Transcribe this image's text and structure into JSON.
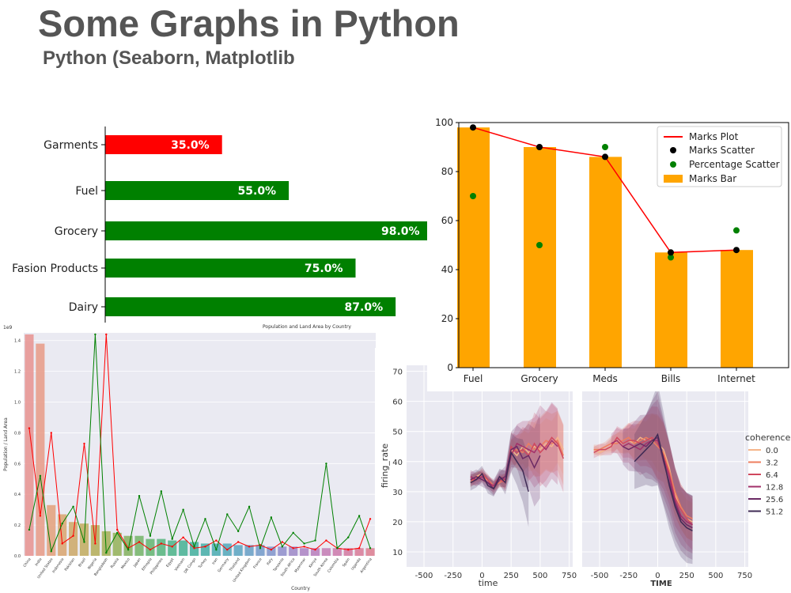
{
  "slide": {
    "title": "Some Graphs in Python",
    "subtitle": "Python (Seaborn, Matplotlib"
  },
  "colors": {
    "red": "#ff0000",
    "green": "#008000",
    "orange": "#ffa500",
    "black": "#000000",
    "seaborn_bg": "#eaeaf2"
  },
  "chart_data": [
    {
      "id": "hbar",
      "type": "bar",
      "orientation": "horizontal",
      "categories": [
        "Garments",
        "Fuel",
        "Grocery",
        "Fasion Products",
        "Dairy"
      ],
      "values": [
        35.0,
        55.0,
        98.0,
        75.0,
        87.0
      ],
      "labels": [
        "35.0%",
        "55.0%",
        "98.0%",
        "75.0%",
        "87.0%"
      ],
      "colors": [
        "#ff0000",
        "#008000",
        "#008000",
        "#008000",
        "#008000"
      ],
      "xlim": [
        0,
        100
      ]
    },
    {
      "id": "combo",
      "type": "bar",
      "categories": [
        "Fuel",
        "Grocery",
        "Meds",
        "Bills",
        "Internet"
      ],
      "series": [
        {
          "name": "Marks Plot",
          "kind": "line",
          "color": "#ff0000",
          "values": [
            98,
            90,
            86,
            47,
            48
          ]
        },
        {
          "name": "Marks Scatter",
          "kind": "scatter",
          "color": "#000000",
          "values": [
            98,
            90,
            86,
            47,
            48
          ]
        },
        {
          "name": "Percentage Scatter",
          "kind": "scatter",
          "color": "#008000",
          "values": [
            70,
            50,
            90,
            45,
            56
          ]
        },
        {
          "name": "Marks Bar",
          "kind": "bar",
          "color": "#ffa500",
          "values": [
            98,
            90,
            86,
            47,
            48
          ]
        }
      ],
      "yticks": [
        "0",
        "20",
        "40",
        "60",
        "80",
        "100"
      ],
      "ylim": [
        0,
        100
      ],
      "legend": "top-right"
    },
    {
      "id": "population",
      "type": "bar",
      "title": "Population and Land Area by Country",
      "xlabel": "Country",
      "ylabel": "Population / Land Area",
      "scale_label": "1e9",
      "categories": [
        "China",
        "India",
        "United States",
        "Indonesia",
        "Pakistan",
        "Brazil",
        "Nigeria",
        "Bangladesh",
        "Russia",
        "Mexico",
        "Japan",
        "Ethiopia",
        "Philippines",
        "Egypt",
        "Vietnam",
        "DR Congo",
        "Turkey",
        "Iran",
        "Germany",
        "Thailand",
        "United Kingdom",
        "France",
        "Italy",
        "Tanzania",
        "South Africa",
        "Myanmar",
        "Kenya",
        "South Korea",
        "Colombia",
        "Spain",
        "Uganda",
        "Argentina"
      ],
      "values": [
        1.44,
        1.38,
        0.33,
        0.27,
        0.22,
        0.21,
        0.2,
        0.16,
        0.15,
        0.13,
        0.13,
        0.11,
        0.11,
        0.1,
        0.1,
        0.09,
        0.08,
        0.08,
        0.08,
        0.07,
        0.07,
        0.07,
        0.06,
        0.06,
        0.06,
        0.05,
        0.05,
        0.05,
        0.05,
        0.05,
        0.05,
        0.05
      ],
      "series": [
        {
          "kind": "line",
          "color": "#ff0000",
          "values": [
            0.83,
            0.26,
            0.8,
            0.08,
            0.13,
            0.73,
            0.08,
            1.44,
            0.17,
            0.05,
            0.09,
            0.04,
            0.08,
            0.06,
            0.12,
            0.05,
            0.06,
            0.1,
            0.04,
            0.09,
            0.06,
            0.07,
            0.04,
            0.09,
            0.05,
            0.06,
            0.04,
            0.1,
            0.05,
            0.04,
            0.05,
            0.24
          ]
        },
        {
          "kind": "line",
          "color": "#008000",
          "values": [
            0.17,
            0.52,
            0.03,
            0.21,
            0.32,
            0.09,
            1.44,
            0.02,
            0.15,
            0.04,
            0.39,
            0.13,
            0.42,
            0.11,
            0.3,
            0.06,
            0.24,
            0.04,
            0.27,
            0.16,
            0.32,
            0.05,
            0.25,
            0.06,
            0.15,
            0.08,
            0.1,
            0.6,
            0.05,
            0.12,
            0.26,
            0.05
          ]
        }
      ],
      "yticks": [
        "0.0",
        "0.2",
        "0.4",
        "0.6",
        "0.8",
        "1.0",
        "1.2",
        "1.4"
      ],
      "ylim": [
        0,
        1.45
      ]
    },
    {
      "id": "firing",
      "type": "line",
      "ylabel": "firing_rate",
      "xlabels": [
        "time",
        "TIME"
      ],
      "xticks": [
        "-500",
        "-250",
        "0",
        "250",
        "500",
        "750"
      ],
      "yticks": [
        "10",
        "20",
        "30",
        "40",
        "50",
        "60",
        "70"
      ],
      "ylim": [
        5,
        72
      ],
      "xlim": [
        -650,
        780
      ],
      "legend": {
        "title": "coherence",
        "entries": [
          "0.0",
          "3.2",
          "6.4",
          "12.8",
          "25.6",
          "51.2"
        ]
      },
      "series_colors": [
        "#f5b58a",
        "#ee7e5e",
        "#d0485e",
        "#a2306a",
        "#6b2a64",
        "#3f2b55"
      ],
      "panels": [
        {
          "x": [
            -100,
            -50,
            0,
            50,
            100,
            150,
            200,
            250,
            300,
            350,
            400,
            450,
            500,
            550,
            600,
            650,
            700
          ],
          "series": [
            {
              "name": "0.0",
              "values": [
                34,
                35,
                36,
                33,
                32,
                34,
                33,
                44,
                42,
                45,
                43,
                45,
                44,
                46,
                45,
                48,
                44
              ]
            },
            {
              "name": "3.2",
              "values": [
                33,
                35,
                35,
                34,
                32,
                33,
                34,
                43,
                44,
                43,
                46,
                44,
                45,
                47,
                46,
                47,
                42
              ]
            },
            {
              "name": "6.4",
              "values": [
                34,
                34,
                36,
                34,
                31,
                34,
                33,
                45,
                43,
                44,
                42,
                46,
                43,
                45,
                48,
                46,
                41
              ]
            },
            {
              "name": "12.8",
              "values": [
                35,
                34,
                35,
                33,
                32,
                35,
                34,
                42,
                46,
                45,
                44,
                43,
                46,
                44,
                47,
                45,
                null
              ]
            },
            {
              "name": "25.6",
              "values": [
                34,
                35,
                34,
                33,
                31,
                34,
                35,
                44,
                45,
                41,
                42,
                38,
                42,
                null,
                null,
                null,
                null
              ]
            },
            {
              "name": "51.2",
              "values": [
                33,
                34,
                36,
                32,
                31,
                35,
                33,
                43,
                40,
                37,
                30,
                null,
                null,
                null,
                null,
                null,
                null
              ]
            }
          ],
          "band_halfwidth": [
            2,
            2,
            2,
            2,
            2,
            2,
            3,
            5,
            6,
            8,
            9,
            11,
            12,
            12,
            12,
            12,
            12
          ]
        },
        {
          "x": [
            -550,
            -500,
            -450,
            -400,
            -350,
            -300,
            -250,
            -200,
            -150,
            -100,
            -50,
            0,
            50,
            100,
            150,
            200,
            250,
            300
          ],
          "series": [
            {
              "name": "0.0",
              "values": [
                44,
                43,
                44,
                45,
                47,
                46,
                47,
                46,
                48,
                47,
                48,
                46,
                44,
                38,
                29,
                24,
                21,
                20
              ]
            },
            {
              "name": "3.2",
              "values": [
                44,
                44,
                45,
                46,
                46,
                47,
                48,
                46,
                47,
                48,
                47,
                45,
                43,
                37,
                30,
                25,
                22,
                21
              ]
            },
            {
              "name": "6.4",
              "values": [
                43,
                44,
                44,
                45,
                48,
                46,
                47,
                47,
                46,
                47,
                48,
                46,
                42,
                36,
                28,
                24,
                21,
                19
              ]
            },
            {
              "name": "12.8",
              "values": [
                null,
                null,
                null,
                46,
                47,
                45,
                46,
                45,
                44,
                46,
                47,
                47,
                41,
                35,
                27,
                22,
                20,
                19
              ]
            },
            {
              "name": "25.6",
              "values": [
                null,
                null,
                null,
                null,
                null,
                45,
                44,
                45,
                46,
                45,
                47,
                48,
                40,
                33,
                26,
                21,
                19,
                18
              ]
            },
            {
              "name": "51.2",
              "values": [
                null,
                null,
                null,
                null,
                null,
                null,
                null,
                40,
                42,
                44,
                46,
                49,
                41,
                32,
                25,
                20,
                18,
                17
              ]
            }
          ],
          "band_halfwidth": [
            2,
            2,
            2,
            3,
            4,
            5,
            6,
            7,
            8,
            9,
            11,
            13,
            12,
            11,
            10,
            9,
            9,
            9
          ]
        }
      ]
    }
  ]
}
